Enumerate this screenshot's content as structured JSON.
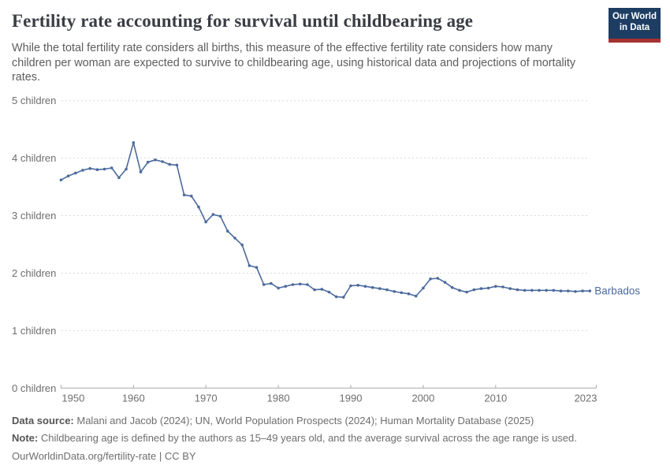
{
  "header": {
    "title": "Fertility rate accounting for survival until childbearing age",
    "subtitle": "While the total fertility rate considers all births, this measure of the effective fertility rate considers how many children per woman are expected to survive to childbearing age, using historical data and projections of mortality rates.",
    "logo_line1": "Our World",
    "logo_line2": "in Data"
  },
  "footer": {
    "data_source_label": "Data source:",
    "data_source_text": " Malani and Jacob (2024); UN, World Population Prospects (2024); Human Mortality Database (2025)",
    "note_label": "Note:",
    "note_text": " Childbearing age is defined by the authors as 15–49 years old, and the average survival across the age range is used.",
    "url_line": "OurWorldinData.org/fertility-rate | CC BY"
  },
  "colors": {
    "series_blue": "#4c6a9c",
    "gridline": "#d9d9d9",
    "axis": "#a8a8a8",
    "tick_label": "#6e6e6e",
    "logo_bg": "#1d3d63",
    "logo_stripe": "#a63232"
  },
  "chart_data": {
    "type": "line",
    "title": "Fertility rate accounting for survival until childbearing age",
    "grid": "horizontal dashed",
    "legend_position": "end-of-line label",
    "xlim": [
      1950,
      2023
    ],
    "ylim": [
      0,
      5
    ],
    "y_ticks": [
      0,
      1,
      2,
      3,
      4,
      5
    ],
    "y_tick_labels": [
      "0 children",
      "1 children",
      "2 children",
      "3 children",
      "4 children",
      "5 children"
    ],
    "x_ticks": [
      1950,
      1960,
      1970,
      1980,
      1990,
      2000,
      2010,
      2023
    ],
    "series": [
      {
        "name": "Barbados",
        "x": [
          1950,
          1951,
          1952,
          1953,
          1954,
          1955,
          1956,
          1957,
          1958,
          1959,
          1960,
          1961,
          1962,
          1963,
          1964,
          1965,
          1966,
          1967,
          1968,
          1969,
          1970,
          1971,
          1972,
          1973,
          1974,
          1975,
          1976,
          1977,
          1978,
          1979,
          1980,
          1981,
          1982,
          1983,
          1984,
          1985,
          1986,
          1987,
          1988,
          1989,
          1990,
          1991,
          1992,
          1993,
          1994,
          1995,
          1996,
          1997,
          1998,
          1999,
          2000,
          2001,
          2002,
          2003,
          2004,
          2005,
          2006,
          2007,
          2008,
          2009,
          2010,
          2011,
          2012,
          2013,
          2014,
          2015,
          2016,
          2017,
          2018,
          2019,
          2020,
          2021,
          2022,
          2023
        ],
        "values": [
          3.62,
          3.69,
          3.74,
          3.79,
          3.82,
          3.8,
          3.81,
          3.83,
          3.66,
          3.81,
          4.27,
          3.76,
          3.93,
          3.97,
          3.94,
          3.89,
          3.88,
          3.36,
          3.34,
          3.15,
          2.89,
          3.02,
          2.99,
          2.73,
          2.61,
          2.49,
          2.13,
          2.1,
          1.8,
          1.82,
          1.74,
          1.77,
          1.8,
          1.81,
          1.8,
          1.71,
          1.72,
          1.67,
          1.59,
          1.58,
          1.78,
          1.79,
          1.77,
          1.75,
          1.73,
          1.71,
          1.68,
          1.66,
          1.64,
          1.6,
          1.74,
          1.9,
          1.91,
          1.84,
          1.75,
          1.7,
          1.67,
          1.71,
          1.73,
          1.74,
          1.77,
          1.76,
          1.73,
          1.71,
          1.7,
          1.7,
          1.7,
          1.7,
          1.7,
          1.69,
          1.69,
          1.68,
          1.69,
          1.69
        ]
      }
    ]
  }
}
